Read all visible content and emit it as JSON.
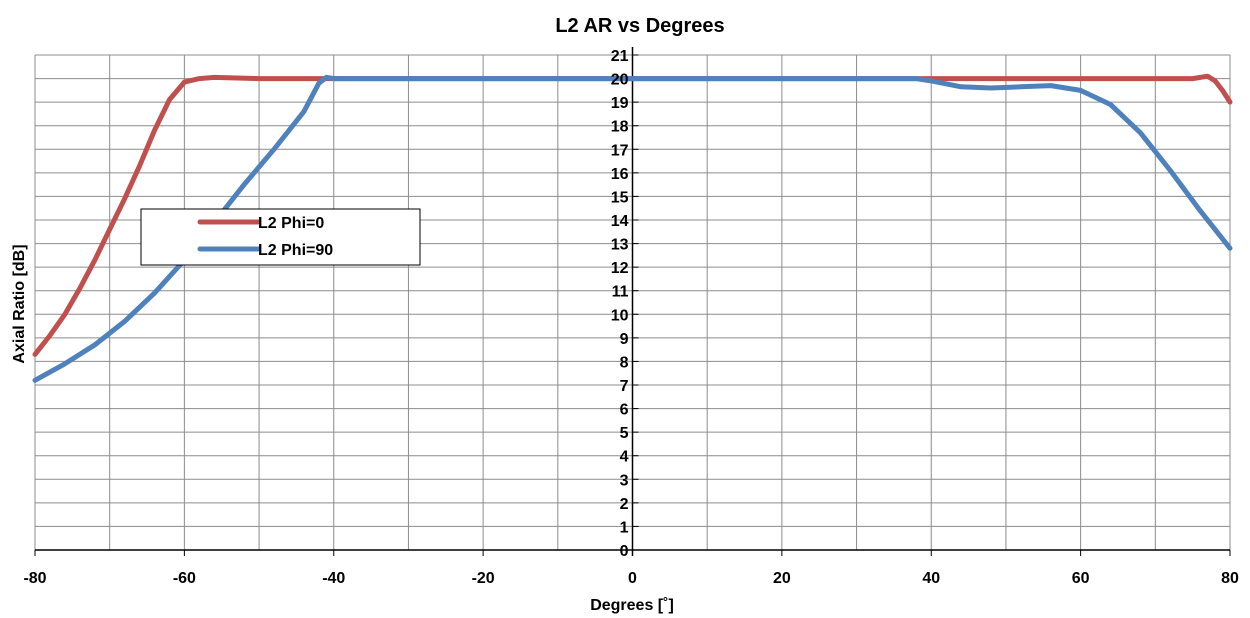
{
  "chart_data": {
    "type": "line",
    "title": "L2 AR vs Degrees",
    "xlabel": "Degrees [˚]",
    "ylabel": "Axial Ratio [dB]",
    "xlim": [
      -80,
      80
    ],
    "ylim": [
      0,
      21
    ],
    "x_ticks": [
      -80,
      -60,
      -40,
      -20,
      0,
      20,
      40,
      60,
      80
    ],
    "y_ticks": [
      0,
      1,
      2,
      3,
      4,
      5,
      6,
      7,
      8,
      9,
      10,
      11,
      12,
      13,
      14,
      15,
      16,
      17,
      18,
      19,
      20,
      21
    ],
    "x_minor_step": 10,
    "grid": true,
    "legend_position": "left",
    "series": [
      {
        "name": "L2 Phi=0",
        "color": "#c0504d",
        "points": [
          [
            -80,
            8.3
          ],
          [
            -78,
            9.1
          ],
          [
            -76,
            10.0
          ],
          [
            -74,
            11.1
          ],
          [
            -72,
            12.3
          ],
          [
            -70,
            13.6
          ],
          [
            -68,
            14.9
          ],
          [
            -66,
            16.3
          ],
          [
            -64,
            17.8
          ],
          [
            -62,
            19.1
          ],
          [
            -60,
            19.85
          ],
          [
            -58,
            20.0
          ],
          [
            -56,
            20.05
          ],
          [
            -50,
            20.0
          ],
          [
            -40,
            20.0
          ],
          [
            -20,
            20.0
          ],
          [
            0,
            20.0
          ],
          [
            20,
            20.0
          ],
          [
            40,
            20.0
          ],
          [
            60,
            20.0
          ],
          [
            75,
            20.0
          ],
          [
            77,
            20.1
          ],
          [
            78,
            19.9
          ],
          [
            79,
            19.5
          ],
          [
            80,
            19.0
          ]
        ]
      },
      {
        "name": "L2 Phi=90",
        "color": "#4f81bd",
        "points": [
          [
            -80,
            7.2
          ],
          [
            -76,
            7.9
          ],
          [
            -72,
            8.7
          ],
          [
            -68,
            9.7
          ],
          [
            -64,
            10.9
          ],
          [
            -60,
            12.3
          ],
          [
            -56,
            13.9
          ],
          [
            -52,
            15.5
          ],
          [
            -48,
            17.0
          ],
          [
            -44,
            18.6
          ],
          [
            -42,
            19.8
          ],
          [
            -41,
            20.05
          ],
          [
            -40,
            20.0
          ],
          [
            -20,
            20.0
          ],
          [
            0,
            20.0
          ],
          [
            20,
            20.0
          ],
          [
            38,
            20.0
          ],
          [
            40,
            19.9
          ],
          [
            44,
            19.65
          ],
          [
            48,
            19.6
          ],
          [
            52,
            19.65
          ],
          [
            56,
            19.7
          ],
          [
            60,
            19.5
          ],
          [
            64,
            18.9
          ],
          [
            68,
            17.7
          ],
          [
            72,
            16.1
          ],
          [
            76,
            14.4
          ],
          [
            80,
            12.8
          ]
        ]
      }
    ]
  }
}
